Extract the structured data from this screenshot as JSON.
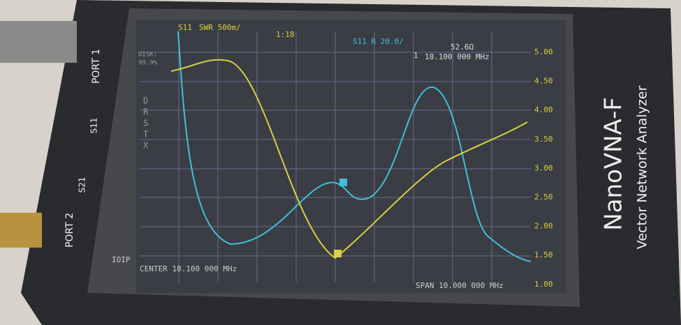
{
  "screen": {
    "trace_label": "S11",
    "swr_scale": "SWR 500m/",
    "swr_value": "1:18",
    "r_scale": "S11 R 20.0/",
    "r_value": "52.6Ω",
    "marker_number": "1",
    "marker_freq": "18.100 000 MHz",
    "disk_label": "DISK:",
    "disk_value": "99.9%",
    "side_letters": [
      "D",
      "R",
      "S",
      "T",
      "X"
    ],
    "mode": "IOIP",
    "center": "CENTER 18.100 000 MHz",
    "span": "SPAN 10.000 000 MHz",
    "y_labels": [
      "5.00",
      "4.50",
      "4.00",
      "3.50",
      "3.00",
      "2.50",
      "2.00",
      "1.50",
      "1.00"
    ]
  },
  "device": {
    "port1": "PORT 1",
    "port2": "PORT 2",
    "s11": "S11",
    "s21": "S21",
    "brand": "NanoVNA-F",
    "subtitle": "Vector Network Analyzer"
  }
}
